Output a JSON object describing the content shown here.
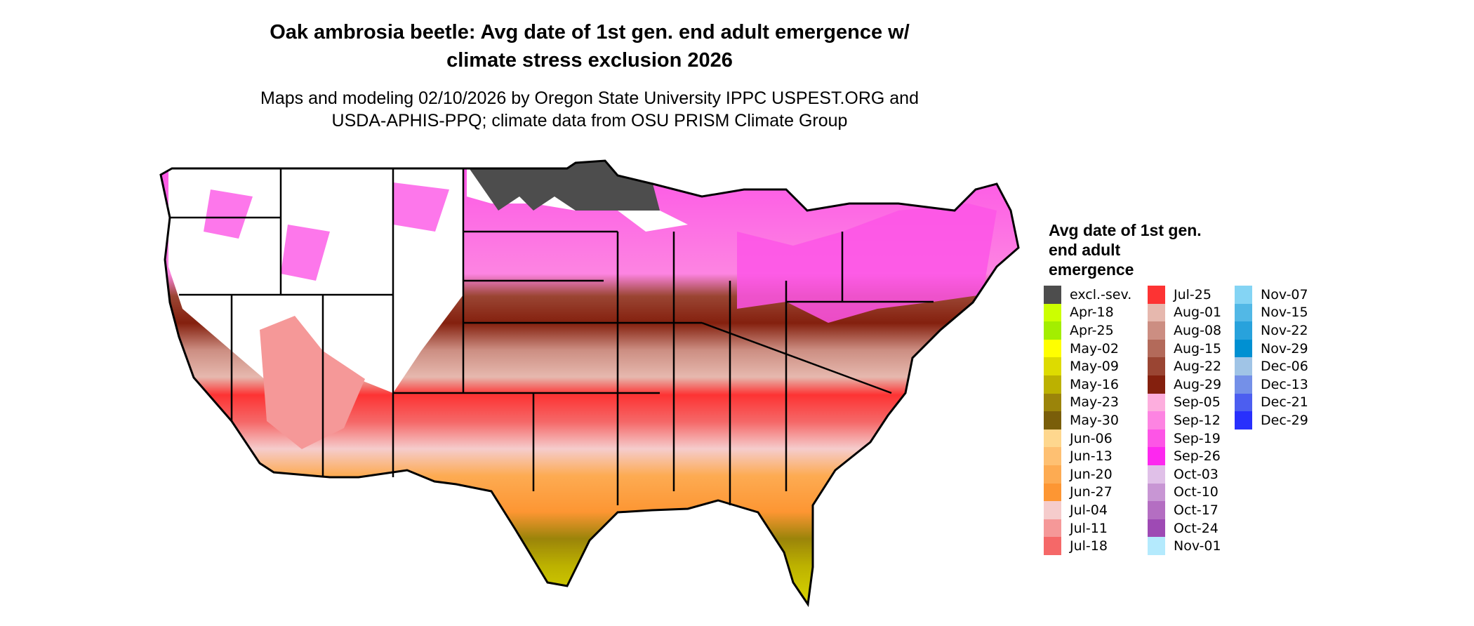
{
  "title": {
    "line1": "Oak ambrosia beetle: Avg date of 1st gen. end adult emergence w/",
    "line2": "climate stress exclusion 2026"
  },
  "subtitle": {
    "line1": "Maps and modeling 02/10/2026 by Oregon State University IPPC USPEST.ORG and",
    "line2": "USDA-APHIS-PPQ; climate data from OSU PRISM Climate Group"
  },
  "legend": {
    "title": "Avg date of 1st gen. end adult emergence",
    "columns": [
      [
        {
          "label": "excl.-sev.",
          "color": "#4d4d4d"
        },
        {
          "label": "Apr-18",
          "color": "#ccff00"
        },
        {
          "label": "Apr-25",
          "color": "#a3ee00"
        },
        {
          "label": "May-02",
          "color": "#ffff00"
        },
        {
          "label": "May-09",
          "color": "#dddb00"
        },
        {
          "label": "May-16",
          "color": "#bcb100"
        },
        {
          "label": "May-23",
          "color": "#9b840a"
        },
        {
          "label": "May-30",
          "color": "#7a5e0a"
        },
        {
          "label": "Jun-06",
          "color": "#fed78e"
        },
        {
          "label": "Jun-13",
          "color": "#fec072"
        },
        {
          "label": "Jun-20",
          "color": "#fdab52"
        },
        {
          "label": "Jun-27",
          "color": "#fd9633"
        },
        {
          "label": "Jul-04",
          "color": "#f5cccc"
        },
        {
          "label": "Jul-11",
          "color": "#f59898"
        },
        {
          "label": "Jul-18",
          "color": "#f56868"
        }
      ],
      [
        {
          "label": "Jul-25",
          "color": "#fd3333"
        },
        {
          "label": "Aug-01",
          "color": "#e6b8ae"
        },
        {
          "label": "Aug-08",
          "color": "#cc8e82"
        },
        {
          "label": "Aug-15",
          "color": "#b36a5a"
        },
        {
          "label": "Aug-22",
          "color": "#9a4533"
        },
        {
          "label": "Aug-29",
          "color": "#84200e"
        },
        {
          "label": "Sep-05",
          "color": "#fdaede"
        },
        {
          "label": "Sep-12",
          "color": "#fd84e2"
        },
        {
          "label": "Sep-19",
          "color": "#fd55e6"
        },
        {
          "label": "Sep-26",
          "color": "#fd28ef"
        },
        {
          "label": "Oct-03",
          "color": "#e0c0e8"
        },
        {
          "label": "Oct-10",
          "color": "#c896d4"
        },
        {
          "label": "Oct-17",
          "color": "#b46ec2"
        },
        {
          "label": "Oct-24",
          "color": "#9e4ab4"
        },
        {
          "label": "Nov-01",
          "color": "#b4eafd"
        }
      ],
      [
        {
          "label": "Nov-07",
          "color": "#84d4f4"
        },
        {
          "label": "Nov-15",
          "color": "#52b8e6"
        },
        {
          "label": "Nov-22",
          "color": "#28a2dc"
        },
        {
          "label": "Nov-29",
          "color": "#0090d2"
        },
        {
          "label": "Dec-06",
          "color": "#a0c4e6"
        },
        {
          "label": "Dec-13",
          "color": "#7490e8"
        },
        {
          "label": "Dec-21",
          "color": "#4c5ef0"
        },
        {
          "label": "Dec-29",
          "color": "#2830fd"
        }
      ]
    ]
  }
}
